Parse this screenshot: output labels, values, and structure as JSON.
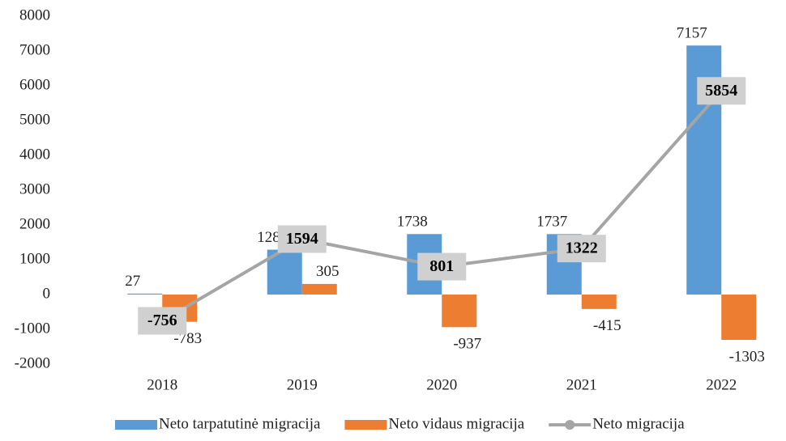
{
  "chart_data": {
    "type": "bar",
    "categories": [
      "2018",
      "2019",
      "2020",
      "2021",
      "2022"
    ],
    "series": [
      {
        "name": "Neto tarpatutinė migracija",
        "color": "#5b9bd5",
        "kind": "bar",
        "values": [
          27,
          1289,
          1738,
          1737,
          7157
        ]
      },
      {
        "name": "Neto vidaus migracija",
        "color": "#ed7d31",
        "kind": "bar",
        "values": [
          -783,
          305,
          -937,
          -415,
          -1303
        ]
      },
      {
        "name": "Neto migracija",
        "color": "#a5a5a5",
        "kind": "line",
        "values": [
          -756,
          1594,
          801,
          1322,
          5854
        ]
      }
    ],
    "ylim": [
      -2000,
      8000
    ],
    "yticks": [
      -2000,
      -1000,
      0,
      1000,
      2000,
      3000,
      4000,
      5000,
      6000,
      7000,
      8000
    ],
    "legend": "bottom"
  }
}
